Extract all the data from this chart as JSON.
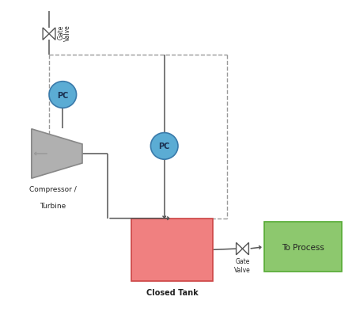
{
  "bg_color": "#ffffff",
  "compressor_color": "#b0b0b0",
  "tank_color": "#f08080",
  "process_color": "#8dc86e",
  "pc_circle_fc": "#5bacd4",
  "pc_circle_ec": "#3a7aaa",
  "line_color": "#555555",
  "dashed_color": "#999999",
  "label_color": "#222222",
  "figsize": [
    4.5,
    4.14
  ],
  "dpi": 100,
  "xlim": [
    0,
    9
  ],
  "ylim": [
    0,
    8.5
  ]
}
